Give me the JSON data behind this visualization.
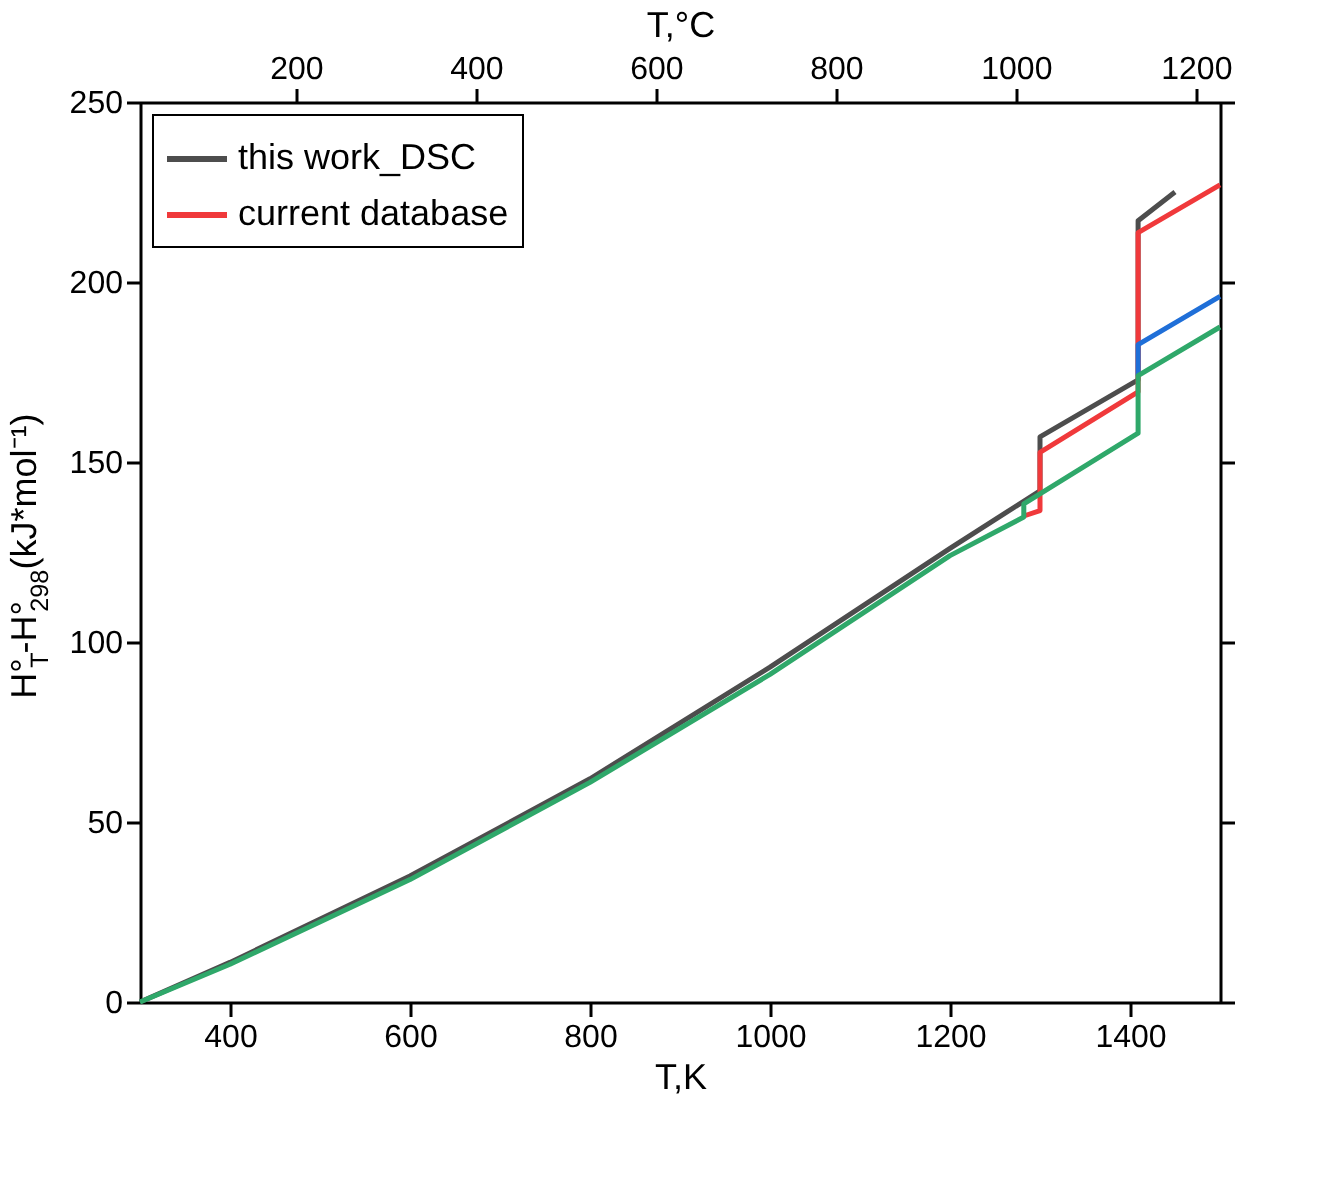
{
  "chart_data": {
    "type": "line",
    "xlabel": "T,K",
    "ylabel": "H°$_{T}$-H°$_{298}$(kJ*mol⁻¹)",
    "x2label": "T,°C",
    "xlim": [
      300,
      1500
    ],
    "xticks": [
      400,
      600,
      800,
      1000,
      1200,
      1400
    ],
    "x2lim": [
      26.85,
      1226.85
    ],
    "x2ticks": [
      200,
      400,
      600,
      800,
      1000,
      1200
    ],
    "ylim": [
      0,
      250
    ],
    "yticks": [
      0,
      50,
      100,
      150,
      200,
      250
    ],
    "grid": false,
    "legend": "top left",
    "line_style": "solid",
    "marker": "none",
    "series": [
      {
        "name": "this work_DSC",
        "color": "#4d4d4d",
        "x": [
          300,
          400,
          600,
          800,
          1000,
          1200,
          1300,
          1300,
          1409,
          1409,
          1450
        ],
        "values": [
          0,
          11,
          35,
          62,
          93,
          126,
          142,
          157,
          172.8,
          217,
          225
        ]
      },
      {
        "name": "current database",
        "color": "#f0393b",
        "x": [
          1282,
          1300,
          1300,
          1409,
          1409,
          1500
        ],
        "values": [
          135,
          136.5,
          152.7,
          169.5,
          213.7,
          227
        ]
      },
      {
        "color": "#1f6fd8",
        "x": [
          1409,
          1409,
          1500
        ],
        "values": [
          174,
          182.6,
          196
        ]
      },
      {
        "color": "#2fa86a",
        "x": [
          300,
          400,
          600,
          800,
          1000,
          1200,
          1282,
          1282,
          1409,
          1409,
          1500
        ],
        "values": [
          0,
          10.5,
          34,
          61,
          91,
          124,
          134.7,
          138.4,
          158,
          174,
          187.5
        ]
      }
    ]
  }
}
